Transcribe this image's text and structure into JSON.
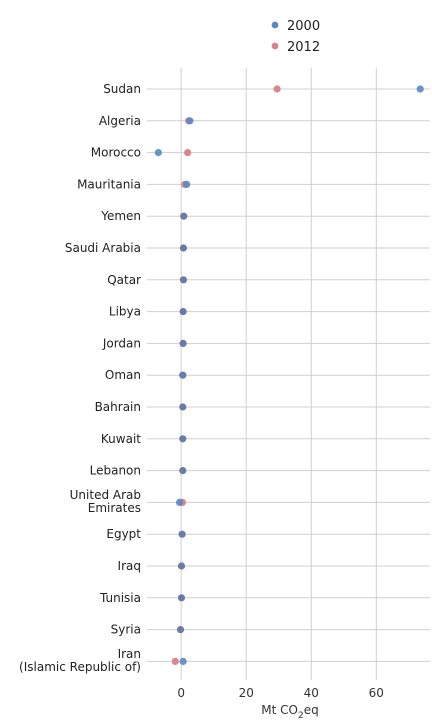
{
  "chart_data": {
    "type": "scatter",
    "subtype": "dot-plot",
    "categories": [
      "Sudan",
      "Algeria",
      "Morocco",
      "Mauritania",
      "Yemen",
      "Saudi Arabia",
      "Qatar",
      "Libya",
      "Jordan",
      "Oman",
      "Bahrain",
      "Kuwait",
      "Lebanon",
      "United Arab Emirates",
      "Egypt",
      "Iraq",
      "Tunisia",
      "Syria",
      "Iran (Islamic Republic of)"
    ],
    "category_lines": [
      [
        "Sudan"
      ],
      [
        "Algeria"
      ],
      [
        "Morocco"
      ],
      [
        "Mauritania"
      ],
      [
        "Yemen"
      ],
      [
        "Saudi Arabia"
      ],
      [
        "Qatar"
      ],
      [
        "Libya"
      ],
      [
        "Jordan"
      ],
      [
        "Oman"
      ],
      [
        "Bahrain"
      ],
      [
        "Kuwait"
      ],
      [
        "Lebanon"
      ],
      [
        "United Arab",
        "Emirates"
      ],
      [
        "Egypt"
      ],
      [
        "Iraq"
      ],
      [
        "Tunisia"
      ],
      [
        "Syria"
      ],
      [
        "Iran",
        "(Islamic Republic of)"
      ]
    ],
    "series": [
      {
        "name": "2000",
        "color": "#5b88c2",
        "values": [
          73.5,
          2.7,
          -7.0,
          1.7,
          0.8,
          0.7,
          0.7,
          0.6,
          0.6,
          0.5,
          0.5,
          0.5,
          0.5,
          -0.5,
          0.3,
          0.1,
          0.1,
          -0.2,
          0.6
        ]
      },
      {
        "name": "2012",
        "color": "#d8818a",
        "values": [
          29.5,
          2.3,
          2.0,
          1.1,
          0.8,
          0.7,
          0.7,
          0.6,
          0.6,
          0.5,
          0.5,
          0.5,
          0.5,
          0.4,
          0.3,
          0.1,
          0.1,
          -0.2,
          -1.8
        ]
      }
    ],
    "overlap_color": "#6b7ba8",
    "x_ticks": [
      0,
      20,
      40,
      60
    ],
    "xlim": [
      -10.5,
      76.5
    ],
    "xlabel_main": "Mt CO",
    "xlabel_sub": "2",
    "xlabel_tail": "eq",
    "legend_position": "top",
    "grid": true
  }
}
